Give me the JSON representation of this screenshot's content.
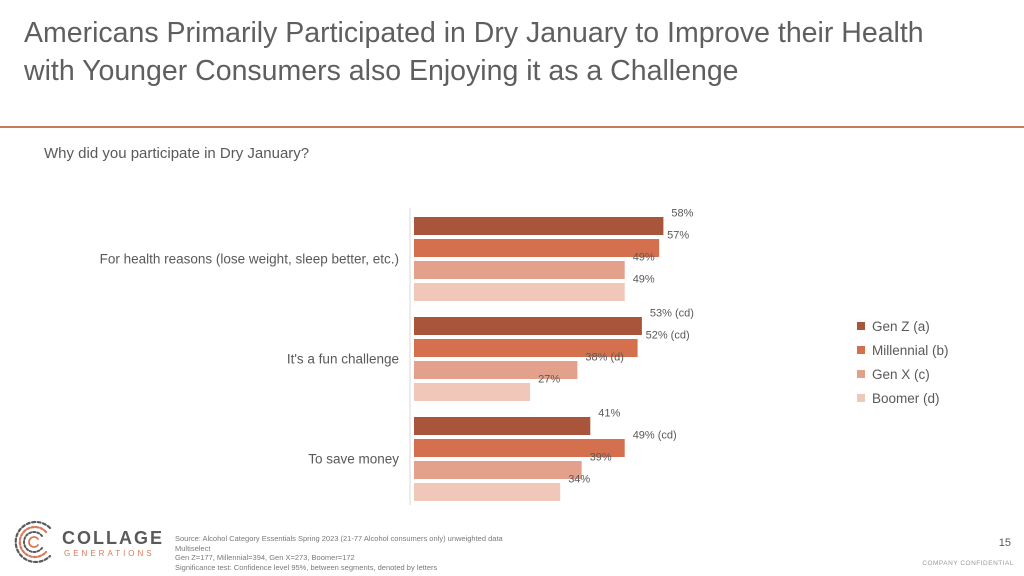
{
  "title_lines": [
    "Americans Primarily Participated in Dry January to Improve their Health",
    "with Younger Consumers also Enjoying it as a Challenge"
  ],
  "question": "Why did you participate in Dry January?",
  "colors": {
    "accent_rule": "#c8795a"
  },
  "chart_data": {
    "type": "bar",
    "orientation": "horizontal",
    "categories": [
      "For health reasons (lose weight, sleep better, etc.)",
      "It's a fun challenge",
      "To save money"
    ],
    "series": [
      {
        "name": "Gen Z (a)",
        "color": "#a8553c",
        "values": [
          58,
          53,
          41
        ],
        "labels": [
          "58%",
          "53% (cd)",
          "41%"
        ]
      },
      {
        "name": "Millennial (b)",
        "color": "#d4704e",
        "values": [
          57,
          52,
          49
        ],
        "labels": [
          "57%",
          "52% (cd)",
          "49% (cd)"
        ]
      },
      {
        "name": "Gen X (c)",
        "color": "#e3a18c",
        "values": [
          49,
          38,
          39
        ],
        "labels": [
          "49%",
          "38% (d)",
          "39%"
        ]
      },
      {
        "name": "Boomer (d)",
        "color": "#f0c7b8",
        "values": [
          49,
          27,
          34
        ],
        "labels": [
          "49%",
          "27%",
          "34%"
        ]
      }
    ],
    "xlim": [
      0,
      100
    ],
    "legend_position": "right"
  },
  "logo": {
    "name": "COLLAGE",
    "subtitle": "GENERATIONS"
  },
  "footnote_lines": [
    "Source: Alcohol Category Essentials Spring 2023 (21-77 Alcohol consumers only) unweighted data",
    "Multiselect",
    "Gen Z=177,  Millennial=394, Gen X=273, Boomer=172",
    "Significance test: Confidence level 95%, between segments, denoted by letters"
  ],
  "page_number": "15",
  "confidential": "COMPANY CONFIDENTIAL"
}
